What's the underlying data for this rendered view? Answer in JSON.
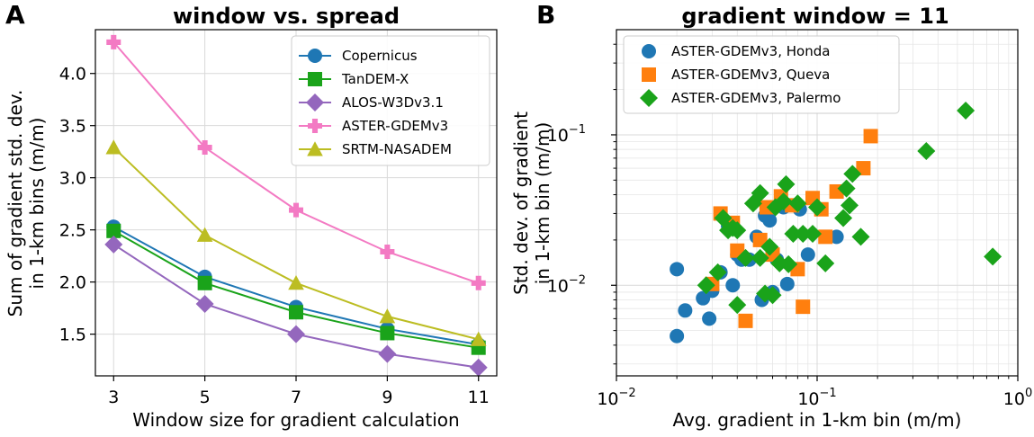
{
  "figure": {
    "panel_a_letter": "A",
    "panel_b_letter": "B"
  },
  "colors": {
    "blue": "#1f77b4",
    "green": "#1aa31a",
    "purple": "#9467bd",
    "pink": "#f37ac3",
    "olive": "#bcbd22",
    "orange": "#ff7f0e"
  },
  "chart_data": [
    {
      "type": "line",
      "title": "window vs. spread",
      "xlabel": "Window size for gradient calculation",
      "ylabel_line1": "Sum of gradient std. dev.",
      "ylabel_line2": "in 1-km bins (m/m)",
      "x": [
        3,
        5,
        7,
        9,
        11
      ],
      "x_tick_labels": [
        "3",
        "5",
        "7",
        "9",
        "11"
      ],
      "y_ticks": [
        1.5,
        2.0,
        2.5,
        3.0,
        3.5,
        4.0
      ],
      "y_tick_labels": [
        "1.5",
        "2.0",
        "2.5",
        "3.0",
        "3.5",
        "4.0"
      ],
      "xlim": [
        2.6,
        11.4
      ],
      "ylim": [
        1.1,
        4.42
      ],
      "legend_position": "top-right",
      "series": [
        {
          "name": "Copernicus",
          "marker": "circle",
          "color": "#1f77b4",
          "values": [
            2.53,
            2.05,
            1.76,
            1.55,
            1.4
          ]
        },
        {
          "name": "TanDEM-X",
          "marker": "square",
          "color": "#1aa31a",
          "values": [
            2.49,
            1.99,
            1.71,
            1.51,
            1.37
          ]
        },
        {
          "name": "ALOS-W3Dv3.1",
          "marker": "diamond",
          "color": "#9467bd",
          "values": [
            2.36,
            1.79,
            1.5,
            1.31,
            1.18
          ]
        },
        {
          "name": "ASTER-GDEMv3",
          "marker": "plus",
          "color": "#f37ac3",
          "values": [
            4.3,
            3.29,
            2.69,
            2.29,
            1.99
          ]
        },
        {
          "name": "SRTM-NASADEM",
          "marker": "triangle",
          "color": "#bcbd22",
          "values": [
            3.29,
            2.45,
            1.99,
            1.67,
            1.45
          ]
        }
      ]
    },
    {
      "type": "scatter",
      "title": "gradient window = 11",
      "xlabel": "Avg. gradient in 1-km bin (m/m)",
      "ylabel_line1": "Std. dev. of gradient",
      "ylabel_line2": "in 1-km bin (m/m)",
      "xscale": "log",
      "yscale": "log",
      "xlim": [
        0.01,
        1.0
      ],
      "ylim": [
        0.0025,
        0.5
      ],
      "x_ticks": [
        {
          "value": 0.01,
          "base": "10",
          "exp": "−2"
        },
        {
          "value": 0.1,
          "base": "10",
          "exp": "−1"
        },
        {
          "value": 1.0,
          "base": "10",
          "exp": "0"
        }
      ],
      "y_ticks": [
        {
          "value": 0.01,
          "base": "10",
          "exp": "−2"
        },
        {
          "value": 0.1,
          "base": "10",
          "exp": "−1"
        }
      ],
      "legend_position": "top-left",
      "series": [
        {
          "name": "ASTER-GDEMv3, Honda",
          "marker": "circle",
          "color": "#1f77b4",
          "points": [
            [
              0.02,
              0.0128
            ],
            [
              0.02,
              0.0046
            ],
            [
              0.022,
              0.0068
            ],
            [
              0.027,
              0.0082
            ],
            [
              0.029,
              0.006
            ],
            [
              0.03,
              0.0092
            ],
            [
              0.033,
              0.0122
            ],
            [
              0.036,
              0.0248
            ],
            [
              0.038,
              0.01
            ],
            [
              0.04,
              0.016
            ],
            [
              0.042,
              0.0148
            ],
            [
              0.046,
              0.0148
            ],
            [
              0.05,
              0.021
            ],
            [
              0.053,
              0.008
            ],
            [
              0.055,
              0.029
            ],
            [
              0.058,
              0.027
            ],
            [
              0.06,
              0.009
            ],
            [
              0.063,
              0.0148
            ],
            [
              0.068,
              0.033
            ],
            [
              0.071,
              0.0102
            ],
            [
              0.082,
              0.032
            ],
            [
              0.09,
              0.016
            ],
            [
              0.125,
              0.021
            ]
          ]
        },
        {
          "name": "ASTER-GDEMv3, Queva",
          "marker": "square",
          "color": "#ff7f0e",
          "points": [
            [
              0.03,
              0.0102
            ],
            [
              0.033,
              0.03
            ],
            [
              0.038,
              0.026
            ],
            [
              0.04,
              0.017
            ],
            [
              0.044,
              0.0058
            ],
            [
              0.052,
              0.02
            ],
            [
              0.056,
              0.033
            ],
            [
              0.06,
              0.016
            ],
            [
              0.066,
              0.039
            ],
            [
              0.075,
              0.034
            ],
            [
              0.08,
              0.0128
            ],
            [
              0.085,
              0.0072
            ],
            [
              0.095,
              0.038
            ],
            [
              0.105,
              0.032
            ],
            [
              0.11,
              0.021
            ],
            [
              0.125,
              0.042
            ],
            [
              0.17,
              0.06
            ],
            [
              0.185,
              0.098
            ]
          ]
        },
        {
          "name": "ASTER-GDEMv3, Palermo",
          "marker": "diamond",
          "color": "#1aa31a",
          "points": [
            [
              0.028,
              0.01
            ],
            [
              0.032,
              0.0122
            ],
            [
              0.034,
              0.028
            ],
            [
              0.036,
              0.0232
            ],
            [
              0.038,
              0.024
            ],
            [
              0.04,
              0.0232
            ],
            [
              0.04,
              0.0074
            ],
            [
              0.044,
              0.0152
            ],
            [
              0.048,
              0.035
            ],
            [
              0.052,
              0.041
            ],
            [
              0.052,
              0.0152
            ],
            [
              0.055,
              0.0088
            ],
            [
              0.058,
              0.018
            ],
            [
              0.06,
              0.0086
            ],
            [
              0.062,
              0.033
            ],
            [
              0.065,
              0.014
            ],
            [
              0.068,
              0.036
            ],
            [
              0.07,
              0.047
            ],
            [
              0.072,
              0.0138
            ],
            [
              0.076,
              0.022
            ],
            [
              0.08,
              0.035
            ],
            [
              0.085,
              0.022
            ],
            [
              0.095,
              0.022
            ],
            [
              0.1,
              0.033
            ],
            [
              0.11,
              0.014
            ],
            [
              0.135,
              0.028
            ],
            [
              0.14,
              0.044
            ],
            [
              0.145,
              0.034
            ],
            [
              0.15,
              0.055
            ],
            [
              0.165,
              0.021
            ],
            [
              0.35,
              0.078
            ],
            [
              0.55,
              0.145
            ],
            [
              0.75,
              0.0155
            ]
          ]
        }
      ]
    }
  ]
}
